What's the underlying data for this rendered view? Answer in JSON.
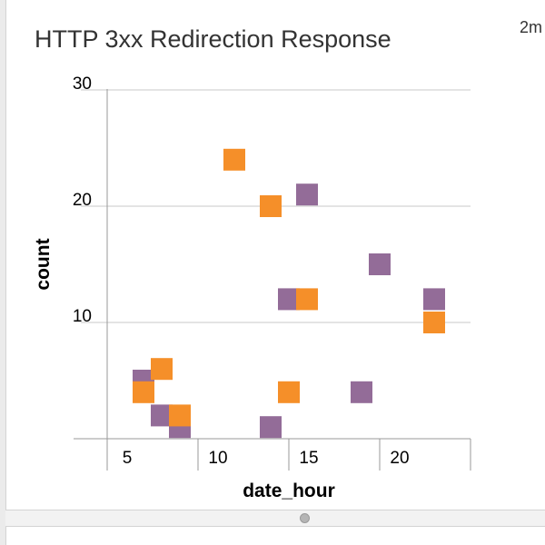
{
  "panel": {
    "title": "HTTP 3xx Redirection Response",
    "time_label": "2m"
  },
  "colors": {
    "series_a": "#f58f29",
    "series_b": "#936c98",
    "gridline": "#c8c8c8",
    "axis": "#999999"
  },
  "chart_data": {
    "type": "scatter",
    "title": "HTTP 3xx Redirection Response",
    "xlabel": "date_hour",
    "ylabel": "count",
    "xlim": [
      3,
      25
    ],
    "ylim": [
      0,
      30
    ],
    "x_ticks": [
      5,
      10,
      15,
      20
    ],
    "y_ticks": [
      10,
      20,
      30
    ],
    "grid": true,
    "legend": "none",
    "series": [
      {
        "color": "#936c98",
        "points": [
          {
            "x": 7,
            "y": 5
          },
          {
            "x": 8,
            "y": 2
          },
          {
            "x": 9,
            "y": 1
          },
          {
            "x": 14,
            "y": 1
          },
          {
            "x": 15,
            "y": 12
          },
          {
            "x": 16,
            "y": 21
          },
          {
            "x": 19,
            "y": 4
          },
          {
            "x": 20,
            "y": 15
          },
          {
            "x": 23,
            "y": 12
          }
        ]
      },
      {
        "color": "#f58f29",
        "points": [
          {
            "x": 7,
            "y": 4
          },
          {
            "x": 8,
            "y": 6
          },
          {
            "x": 9,
            "y": 2
          },
          {
            "x": 12,
            "y": 24
          },
          {
            "x": 14,
            "y": 20
          },
          {
            "x": 15,
            "y": 4
          },
          {
            "x": 16,
            "y": 12
          },
          {
            "x": 23,
            "y": 10
          }
        ]
      }
    ]
  }
}
